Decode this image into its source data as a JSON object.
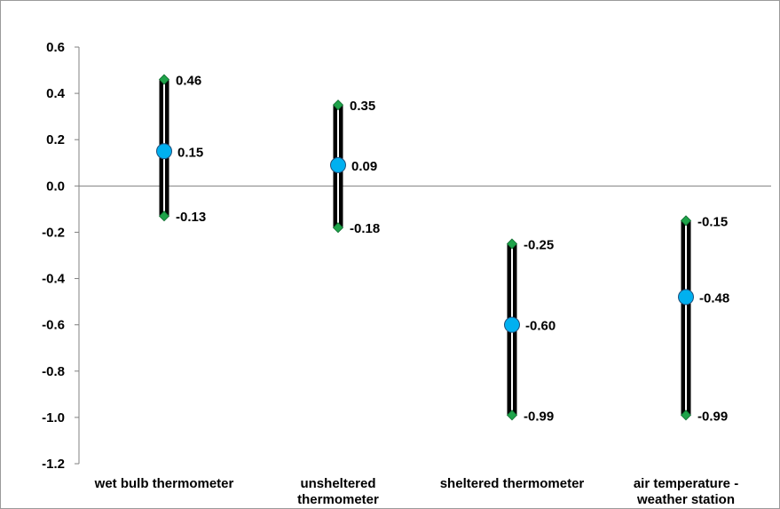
{
  "chart_data": {
    "type": "range",
    "title": "",
    "xlabel": "",
    "ylabel": "",
    "ylim": [
      -1.2,
      0.6
    ],
    "ytick_step": 0.2,
    "grid": false,
    "legend": "none",
    "categories": [
      [
        "wet bulb thermometer"
      ],
      [
        "unsheltered",
        "thermometer"
      ],
      [
        "sheltered thermometer"
      ],
      [
        "air temperature -",
        "weather station"
      ]
    ],
    "series": [
      {
        "values": [
          0.46,
          0.35,
          -0.25,
          -0.15
        ],
        "labels": [
          "0.46",
          "0.35",
          "-0.25",
          "-0.15"
        ]
      },
      {
        "values": [
          0.15,
          0.09,
          -0.6,
          -0.48
        ],
        "labels": [
          "0.15",
          "0.09",
          "-0.60",
          "-0.48"
        ]
      },
      {
        "values": [
          -0.13,
          -0.18,
          -0.99,
          -0.99
        ],
        "labels": [
          "-0.13",
          "-0.18",
          "-0.99",
          "-0.99"
        ]
      }
    ],
    "colors": {
      "range_bar": "#000000",
      "range_bar_inner": "#ffffff",
      "endpoint_marker": "#1fa34a",
      "mean_marker": "#00b0f0",
      "mean_marker_border": "#1f4e79",
      "axis": "#808080"
    }
  }
}
